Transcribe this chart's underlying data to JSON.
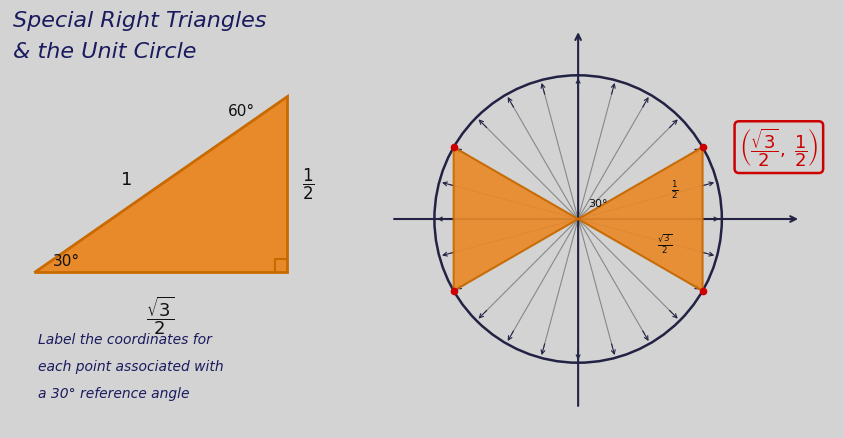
{
  "bg_color": "#d3d3d3",
  "title_line1": "Special Right Triangles",
  "title_line2": "& the Unit Circle",
  "title_color": "#1a1a5e",
  "title_fontsize": 16,
  "orange_color": "#e8892a",
  "orange_edge": "#c96a00",
  "triangle_angle_60": "60°",
  "triangle_angle_30": "30°",
  "triangle_side1": "1",
  "body_text": [
    "Label the coordinates for",
    "each point associated with",
    "a 30° reference angle"
  ],
  "body_fontsize": 10,
  "body_text_color": "#1a1a5e",
  "red_dot_color": "#cc0000",
  "coord_color": "#cc0000",
  "axis_color": "#222244",
  "spoke_color": "#888888",
  "circle_color": "#222244",
  "circle_lw": 1.8,
  "spoke_angles_deg": [
    0,
    15,
    30,
    45,
    60,
    75,
    90,
    105,
    120,
    135,
    150,
    165,
    180,
    195,
    210,
    225,
    240,
    255,
    270,
    285,
    300,
    315,
    330,
    345
  ],
  "highlighted_angles_deg": [
    30,
    150,
    210,
    330
  ],
  "orange_triangle_pairs": [
    [
      0,
      3
    ],
    [
      1,
      2
    ]
  ]
}
